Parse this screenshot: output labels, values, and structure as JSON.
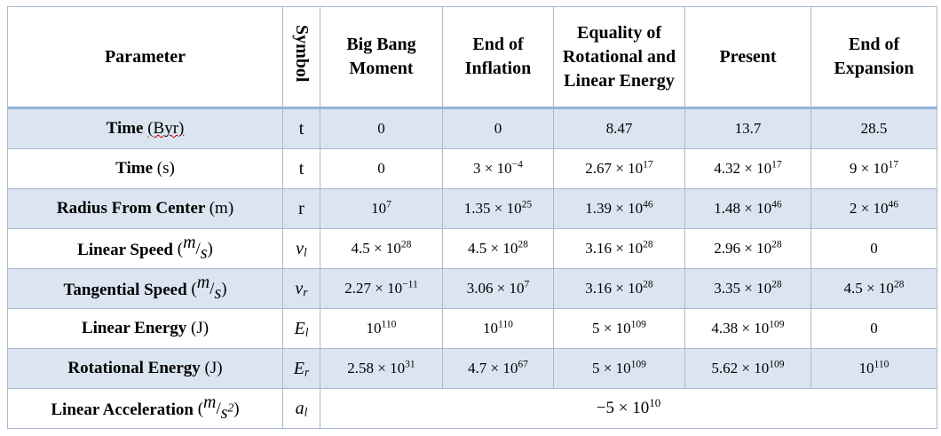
{
  "header": {
    "parameter": "Parameter",
    "symbol": "Symbol",
    "columns": [
      "Big Bang Moment",
      "End of Inflation",
      "Equality of Rotational and Linear Energy",
      "Present",
      "End of Expansion"
    ]
  },
  "rows": [
    {
      "label": {
        "name": "Time",
        "unit": "(Byr)"
      },
      "symbol": {
        "base": "t"
      },
      "values": [
        "0",
        "0",
        "8.47",
        "13.7",
        "28.5"
      ]
    },
    {
      "label": {
        "name": "Time",
        "unit": "(s)"
      },
      "symbol": {
        "base": "t"
      },
      "values": [
        "0",
        {
          "base": "3 × 10",
          "sup": "−4"
        },
        {
          "base": "2.67 × 10",
          "sup": "17"
        },
        {
          "base": "4.32 × 10",
          "sup": "17"
        },
        {
          "base": "9 × 10",
          "sup": "17"
        }
      ]
    },
    {
      "label": {
        "name": "Radius From Center",
        "unit": "(m)"
      },
      "symbol": {
        "base": "r"
      },
      "values": [
        {
          "base": "10",
          "sup": "7"
        },
        {
          "base": "1.35 × 10",
          "sup": "25"
        },
        {
          "base": "1.39 × 10",
          "sup": "46"
        },
        {
          "base": "1.48 × 10",
          "sup": "46"
        },
        {
          "base": "2 × 10",
          "sup": "46"
        }
      ]
    },
    {
      "label": {
        "name": "Linear Speed",
        "unit": {
          "open": "(",
          "num": "m",
          "slash": "/",
          "den": "s",
          "close": ")"
        }
      },
      "symbol": {
        "base": "v",
        "sub": "l"
      },
      "values": [
        {
          "base": "4.5 × 10",
          "sup": "28"
        },
        {
          "base": "4.5 × 10",
          "sup": "28"
        },
        {
          "base": "3.16 × 10",
          "sup": "28"
        },
        {
          "base": "2.96 × 10",
          "sup": "28"
        },
        "0"
      ]
    },
    {
      "label": {
        "name": "Tangential Speed",
        "unit": {
          "open": "(",
          "num": "m",
          "slash": "/",
          "den": "s",
          "close": ")"
        }
      },
      "symbol": {
        "base": "v",
        "sub": "r"
      },
      "values": [
        {
          "base": "2.27 × 10",
          "sup": "−11"
        },
        {
          "base": "3.06 × 10",
          "sup": "7"
        },
        {
          "base": "3.16 × 10",
          "sup": "28"
        },
        {
          "base": "3.35 × 10",
          "sup": "28"
        },
        {
          "base": "4.5 × 10",
          "sup": "28"
        }
      ]
    },
    {
      "label": {
        "name": "Linear Energy",
        "unit": "(J)"
      },
      "symbol": {
        "base": "E",
        "sub": "l"
      },
      "values": [
        {
          "base": "10",
          "sup": "110"
        },
        {
          "base": "10",
          "sup": "110"
        },
        {
          "base": "5 × 10",
          "sup": "109"
        },
        {
          "base": "4.38 × 10",
          "sup": "109"
        },
        "0"
      ]
    },
    {
      "label": {
        "name": "Rotational Energy",
        "unit": "(J)"
      },
      "symbol": {
        "base": "E",
        "sub": "r"
      },
      "values": [
        {
          "base": "2.58 × 10",
          "sup": "31"
        },
        {
          "base": "4.7 × 10",
          "sup": "67"
        },
        {
          "base": "5 × 10",
          "sup": "109"
        },
        {
          "base": "5.62 × 10",
          "sup": "109"
        },
        {
          "base": "10",
          "sup": "110"
        }
      ]
    },
    {
      "label": {
        "name": "Linear Acceleration",
        "unit": {
          "open": "(",
          "num": "m",
          "slash": "/",
          "den": "s",
          "den_sup": "2",
          "close": ")"
        }
      },
      "symbol": {
        "base": "a",
        "sub": "l"
      },
      "span_value": {
        "base": "−5 × 10",
        "sup": "10"
      }
    }
  ]
}
